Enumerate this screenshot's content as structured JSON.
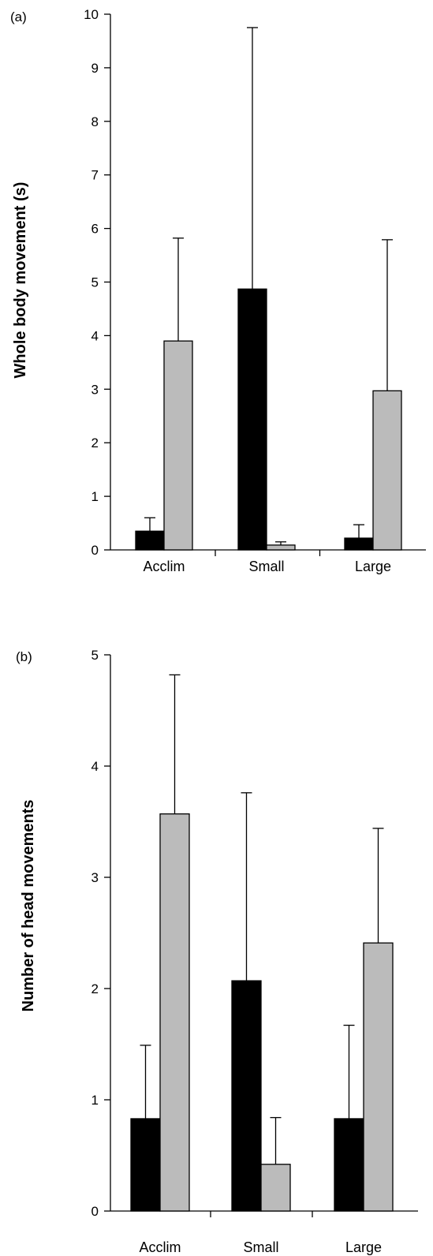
{
  "chart_data": [
    {
      "type": "bar",
      "panel_label": "(a)",
      "ylabel": "Whole body movement (s)",
      "xlabel": "",
      "categories": [
        "Acclim",
        "Small",
        "Large"
      ],
      "ylim": [
        0,
        10
      ],
      "yticks": [
        0,
        1,
        2,
        3,
        4,
        5,
        6,
        7,
        8,
        9,
        10
      ],
      "series": [
        {
          "color": "#000000",
          "values": [
            0.35,
            4.87,
            0.22
          ],
          "errors": [
            0.25,
            4.88,
            0.25
          ]
        },
        {
          "color": "#bbbbbb",
          "values": [
            3.9,
            0.09,
            2.97
          ],
          "errors": [
            1.92,
            0.06,
            2.82
          ]
        }
      ]
    },
    {
      "type": "bar",
      "panel_label": "(b)",
      "ylabel": "Number of head movements",
      "xlabel": "",
      "categories": [
        "Acclim",
        "Small",
        "Large"
      ],
      "ylim": [
        0,
        5
      ],
      "yticks": [
        0,
        1,
        2,
        3,
        4,
        5
      ],
      "series": [
        {
          "color": "#000000",
          "values": [
            0.83,
            2.07,
            0.83
          ],
          "errors": [
            0.66,
            1.69,
            0.84
          ]
        },
        {
          "color": "#bbbbbb",
          "values": [
            3.57,
            0.42,
            2.41
          ],
          "errors": [
            1.25,
            0.42,
            1.03
          ]
        }
      ]
    }
  ]
}
